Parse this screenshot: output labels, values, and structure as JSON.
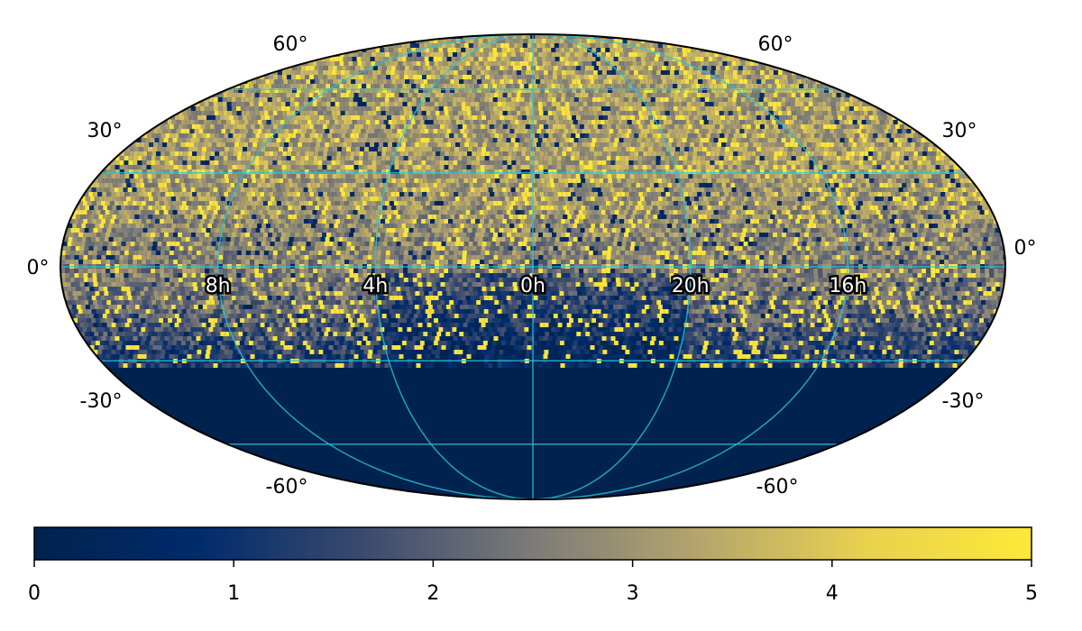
{
  "chart_data": {
    "type": "heatmap",
    "projection": "mollweide",
    "title": "",
    "colormap": "cividis",
    "colors": {
      "stops": [
        "#00224e",
        "#002c6c",
        "#3c4b6e",
        "#7c7b78",
        "#b5a56c",
        "#e8d14f",
        "#fee838"
      ],
      "grid": "#27c4d8",
      "outline": "#000000",
      "background": "#ffffff"
    },
    "color_range": [
      0,
      5
    ],
    "colorbar": {
      "orientation": "horizontal",
      "ticks": [
        "0",
        "1",
        "2",
        "3",
        "4",
        "5"
      ],
      "tick_values": [
        0,
        1,
        2,
        3,
        4,
        5
      ]
    },
    "graticule": {
      "parallels_deg": [
        -60,
        -30,
        0,
        30,
        60
      ],
      "meridians_hours": [
        0,
        4,
        8,
        12,
        16,
        20
      ],
      "lat_labels_left": [
        "60°",
        "30°",
        "0°",
        "-30°",
        "-60°"
      ],
      "lat_labels_right": [
        "60°",
        "30°",
        "0°",
        "-30°",
        "-60°"
      ],
      "ra_labels": [
        "8h",
        "4h",
        "0h",
        "20h",
        "16h"
      ],
      "ra_label_hours": [
        8,
        4,
        0,
        20,
        16
      ]
    },
    "coverage": {
      "southern_limit_dec_deg": -32,
      "unobserved_value": 0,
      "typical_value_range": [
        2,
        5
      ],
      "description_values": {
        "north_mean": 3.2,
        "equator_mean": 2.6,
        "south_edge_mean": 1.2
      }
    }
  }
}
